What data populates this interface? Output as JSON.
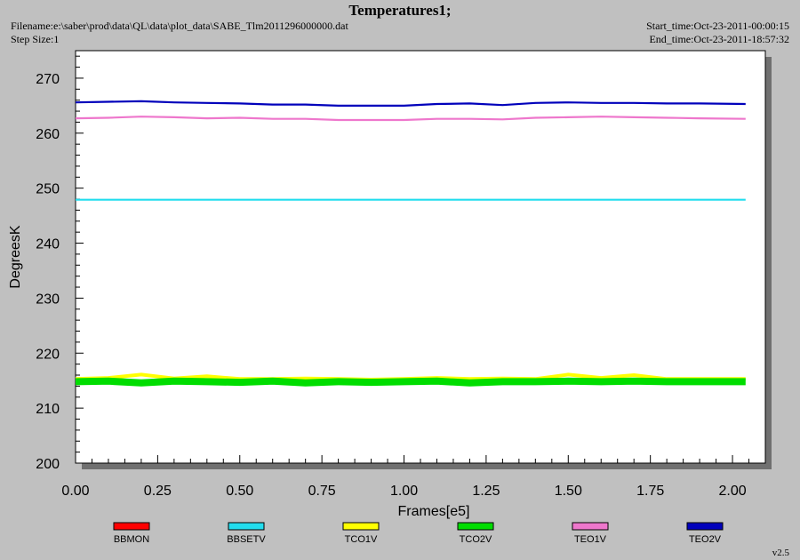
{
  "header": {
    "title": "Temperatures1;",
    "filename": "Filename:e:\\saber\\prod\\data\\QL\\data\\plot_data\\SABE_Tlm2011296000000.dat",
    "step_size": "Step Size:1",
    "start_time": "Start_time:Oct-23-2011-00:00:15",
    "end_time": "End_time:Oct-23-2011-18:57:32"
  },
  "footer": {
    "version": "v2.5"
  },
  "chart_data": {
    "type": "line",
    "title": "Temperatures1;",
    "xlabel": "Frames[e5]",
    "ylabel": "DegreesK",
    "xlim": [
      0,
      2.1
    ],
    "ylim": [
      200,
      275
    ],
    "x_ticks": [
      "0.00",
      "0.25",
      "0.50",
      "0.75",
      "1.00",
      "1.25",
      "1.50",
      "1.75",
      "2.00"
    ],
    "y_ticks": [
      "200",
      "210",
      "220",
      "230",
      "240",
      "250",
      "260",
      "270"
    ],
    "grid": false,
    "legend_position": "bottom",
    "series": [
      {
        "name": "BBMON",
        "color": "#ff0000",
        "x": [],
        "values": []
      },
      {
        "name": "BBSETV",
        "color": "#22ddee",
        "x": [
          0,
          0.25,
          0.5,
          0.75,
          1.0,
          1.25,
          1.5,
          1.75,
          2.04
        ],
        "values": [
          247.9,
          247.9,
          247.9,
          247.9,
          247.9,
          247.9,
          247.9,
          247.9,
          247.9
        ]
      },
      {
        "name": "TCO1V",
        "color": "#ffff00",
        "x": [
          0,
          0.1,
          0.2,
          0.3,
          0.4,
          0.5,
          0.6,
          0.7,
          0.8,
          0.9,
          1.0,
          1.1,
          1.2,
          1.3,
          1.4,
          1.5,
          1.6,
          1.7,
          1.8,
          1.9,
          2.04
        ],
        "values": [
          215.3,
          215.5,
          216.1,
          215.4,
          215.8,
          215.3,
          215.3,
          215.4,
          215.3,
          215.2,
          215.3,
          215.5,
          215.3,
          215.4,
          215.3,
          216.1,
          215.5,
          216.0,
          215.3,
          215.3,
          215.3
        ]
      },
      {
        "name": "TCO2V",
        "color": "#00dd00",
        "x": [
          0,
          0.1,
          0.2,
          0.3,
          0.4,
          0.5,
          0.6,
          0.7,
          0.8,
          0.9,
          1.0,
          1.1,
          1.2,
          1.3,
          1.4,
          1.5,
          1.6,
          1.7,
          1.8,
          1.9,
          2.04
        ],
        "values": [
          214.8,
          214.9,
          214.6,
          214.9,
          214.8,
          214.7,
          214.9,
          214.6,
          214.8,
          214.7,
          214.8,
          214.9,
          214.6,
          214.8,
          214.8,
          214.9,
          214.8,
          214.9,
          214.8,
          214.8,
          214.8
        ]
      },
      {
        "name": "TEO1V",
        "color": "#ee77cc",
        "x": [
          0,
          0.1,
          0.2,
          0.3,
          0.4,
          0.5,
          0.6,
          0.7,
          0.8,
          0.9,
          1.0,
          1.1,
          1.2,
          1.3,
          1.4,
          1.5,
          1.6,
          1.7,
          1.8,
          1.9,
          2.04
        ],
        "values": [
          262.7,
          262.8,
          263.0,
          262.9,
          262.7,
          262.8,
          262.6,
          262.6,
          262.4,
          262.4,
          262.4,
          262.6,
          262.6,
          262.5,
          262.8,
          262.9,
          263.0,
          262.9,
          262.8,
          262.7,
          262.6
        ]
      },
      {
        "name": "TEO2V",
        "color": "#0000bb",
        "x": [
          0,
          0.1,
          0.2,
          0.3,
          0.4,
          0.5,
          0.6,
          0.7,
          0.8,
          0.9,
          1.0,
          1.1,
          1.2,
          1.3,
          1.4,
          1.5,
          1.6,
          1.7,
          1.8,
          1.9,
          2.04
        ],
        "values": [
          265.6,
          265.7,
          265.8,
          265.6,
          265.5,
          265.4,
          265.2,
          265.2,
          265.0,
          265.0,
          265.0,
          265.3,
          265.4,
          265.1,
          265.5,
          265.6,
          265.5,
          265.5,
          265.4,
          265.4,
          265.3
        ]
      }
    ]
  }
}
